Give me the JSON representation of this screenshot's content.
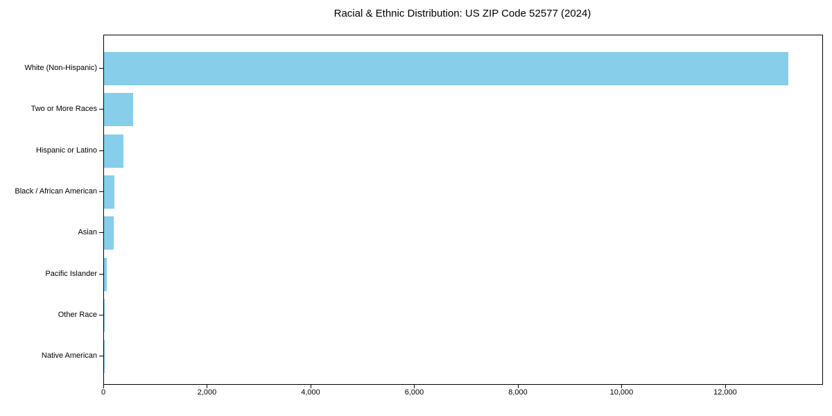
{
  "chart_data": {
    "type": "bar",
    "orientation": "horizontal",
    "title": "Racial & Ethnic Distribution: US ZIP Code 52577 (2024)",
    "categories": [
      "White (Non-Hispanic)",
      "Two or More Races",
      "Hispanic or Latino",
      "Black / African American",
      "Asian",
      "Pacific Islander",
      "Other Race",
      "Native American"
    ],
    "values": [
      13200,
      560,
      380,
      205,
      190,
      58,
      12,
      4
    ],
    "bar_color": "#87CEEB",
    "xlabel": "",
    "ylabel": "",
    "xlim": [
      0,
      13860
    ],
    "x_ticks": [
      0,
      2000,
      4000,
      6000,
      8000,
      10000,
      12000
    ],
    "x_tick_labels": [
      "0",
      "2,000",
      "4,000",
      "6,000",
      "8,000",
      "10,000",
      "12,000"
    ],
    "grid": false,
    "legend": "none",
    "frame": true,
    "text_color": "#000000"
  }
}
